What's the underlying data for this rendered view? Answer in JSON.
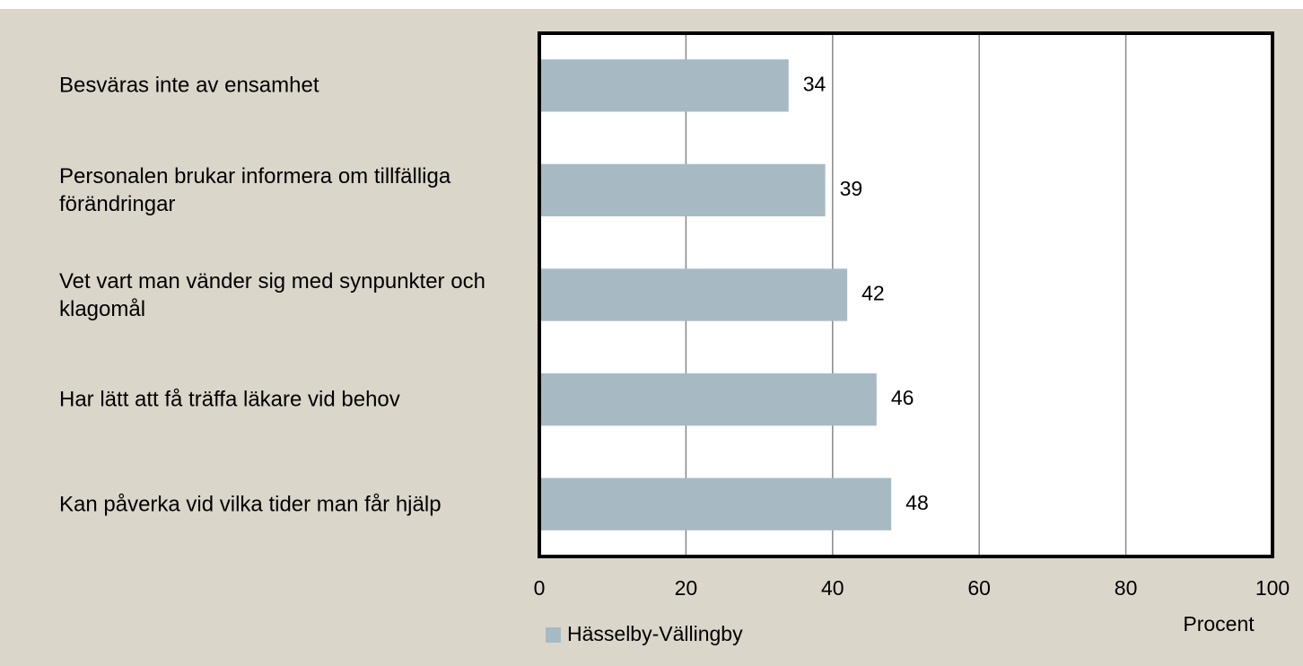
{
  "chart_data": {
    "type": "bar",
    "orientation": "horizontal",
    "categories": [
      "Besväras inte av ensamhet",
      "Personalen brukar informera om tillfälliga förändringar",
      "Vet vart man vänder sig med synpunkter och klagomål",
      "Har lätt att få träffa läkare vid behov",
      "Kan påverka vid vilka tider man får hjälp"
    ],
    "series": [
      {
        "name": "Hässelby-Vällingby",
        "color": "#a7bac4",
        "values": [
          34,
          39,
          42,
          46,
          48
        ]
      }
    ],
    "xlim": [
      0,
      100
    ],
    "xticks": [
      0,
      20,
      40,
      60,
      80,
      100
    ],
    "xlabel": "Procent",
    "grid": true,
    "legend": "bottom"
  }
}
